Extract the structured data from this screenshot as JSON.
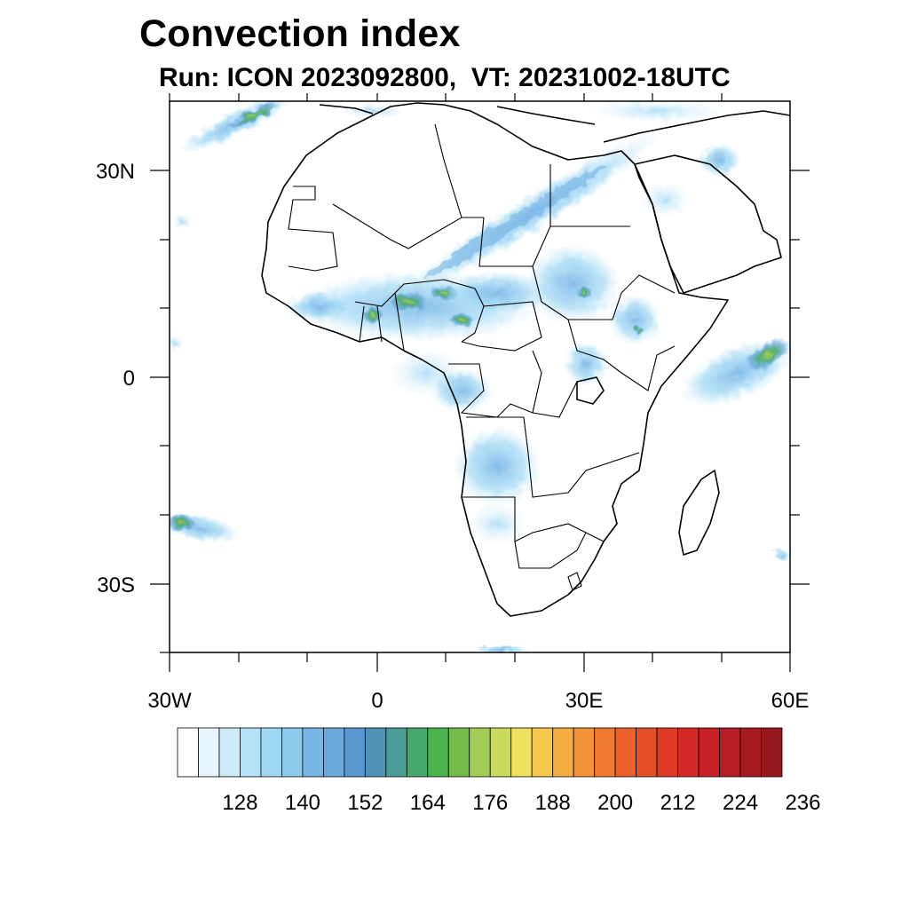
{
  "title": "Convection index",
  "subtitle": "Run: ICON 2023092800,  VT: 20231002-18UTC",
  "axes": {
    "lon_labels": [
      "30W",
      "0",
      "30E",
      "60E"
    ],
    "lat_labels": [
      "30N",
      "0",
      "30S"
    ]
  },
  "colorbar": {
    "labels": [
      "128",
      "140",
      "152",
      "164",
      "176",
      "188",
      "200",
      "212",
      "224",
      "236"
    ],
    "colors": [
      "#ffffff",
      "#e6f5fd",
      "#cdeaf9",
      "#b6e2f7",
      "#a0d8f4",
      "#8ccaee",
      "#78b6e6",
      "#6aa8de",
      "#5a98d0",
      "#4f94b8",
      "#4a9e95",
      "#47a86e",
      "#4cb34d",
      "#74bc4c",
      "#a3cc54",
      "#cbd95c",
      "#efe15e",
      "#f7c84e",
      "#f5ae44",
      "#f39339",
      "#ef7b31",
      "#eb632a",
      "#e54f27",
      "#de3a26",
      "#d42a27",
      "#c72127",
      "#b81c24",
      "#a81a22",
      "#981820"
    ]
  },
  "map_features": [
    "convection-band-sahel",
    "convection-band-sahara",
    "convection-south-america-west",
    "convection-indian-ocean",
    "convection-atlantic-north",
    "convection-atlantic-south",
    "africa-coastline",
    "country-borders",
    "madagascar"
  ]
}
